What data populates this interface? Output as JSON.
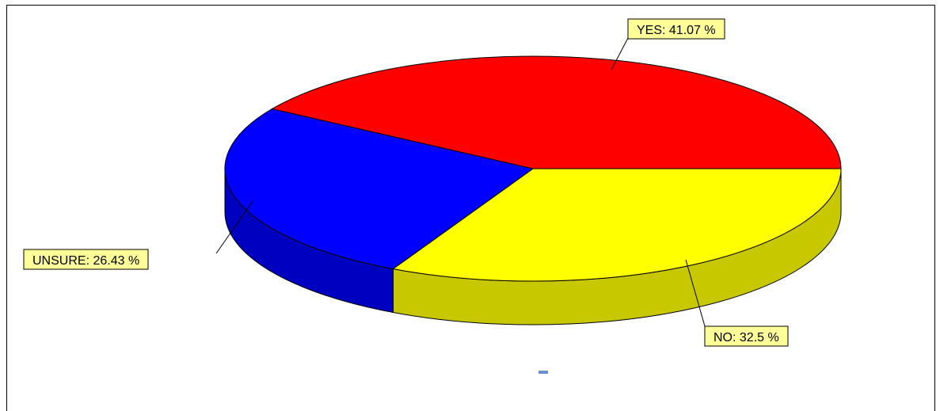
{
  "chart_data": {
    "type": "pie",
    "style": "3d",
    "title": "",
    "slices": [
      {
        "name": "YES",
        "label": "YES:  41.07 %",
        "value": 41.07,
        "color": "#ff0000",
        "side_color": "#c00000"
      },
      {
        "name": "NO",
        "label": "NO:  32.5 %",
        "value": 32.5,
        "color": "#ffff00",
        "side_color": "#c8c800"
      },
      {
        "name": "UNSURE",
        "label": "UNSURE:  26.43 %",
        "value": 26.43,
        "color": "#0000ff",
        "side_color": "#0000c0"
      }
    ],
    "label_box_color": "#ffff99"
  }
}
